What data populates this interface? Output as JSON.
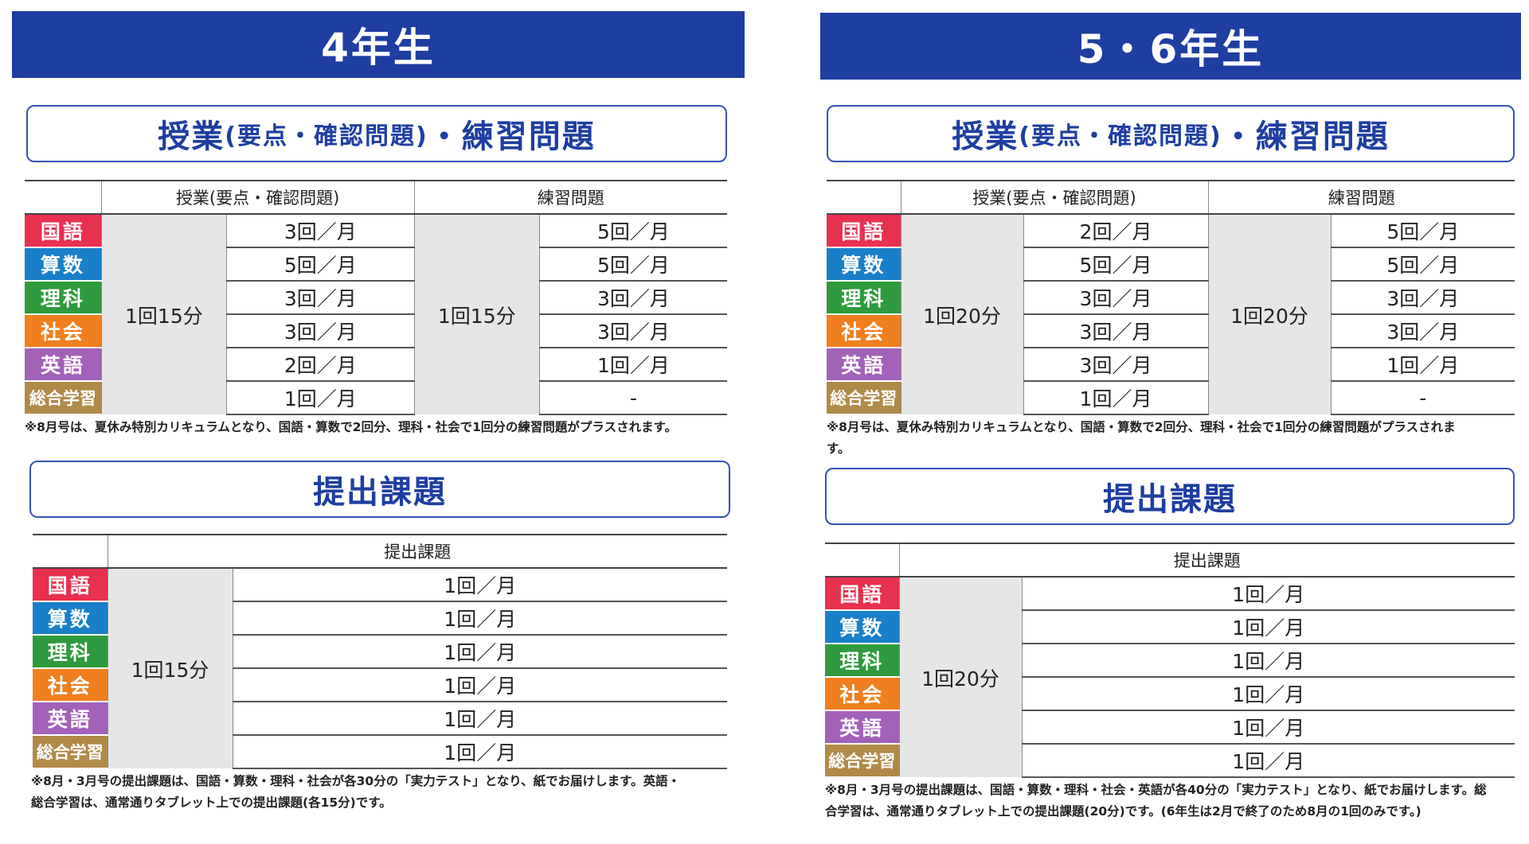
{
  "colors": {
    "banner": "#1e3ea1",
    "kokugo": "#e8304f",
    "sansu": "#1a7fc9",
    "rika": "#2f9a3d",
    "shakai": "#f07f1f",
    "eigo": "#a361b8",
    "sogo": "#b08a48"
  },
  "grade4": {
    "title": "4年生",
    "section1": {
      "title_main": "授業",
      "title_paren": "(要点・確認問題)",
      "title_rest": "・練習問題"
    },
    "table1": {
      "header_a": "授業(要点・確認問題)",
      "header_b": "練習問題",
      "duration_a": "1回15分",
      "duration_b": "1回15分",
      "rows": [
        {
          "subject": "国語",
          "color": "#e8304f",
          "a": "3回／月",
          "b": "5回／月"
        },
        {
          "subject": "算数",
          "color": "#1a7fc9",
          "a": "5回／月",
          "b": "5回／月"
        },
        {
          "subject": "理科",
          "color": "#2f9a3d",
          "a": "3回／月",
          "b": "3回／月"
        },
        {
          "subject": "社会",
          "color": "#f07f1f",
          "a": "3回／月",
          "b": "3回／月"
        },
        {
          "subject": "英語",
          "color": "#a361b8",
          "a": "2回／月",
          "b": "1回／月"
        },
        {
          "subject": "総合学習",
          "color": "#b08a48",
          "a": "1回／月",
          "b": "-"
        }
      ]
    },
    "note1": "※8月号は、夏休み特別カリキュラムとなり、国語・算数で2回分、理科・社会で1回分の練習問題がプラスされます。",
    "section2": {
      "title": "提出課題"
    },
    "table2": {
      "header": "提出課題",
      "duration": "1回15分",
      "rows": [
        {
          "subject": "国語",
          "color": "#e8304f",
          "v": "1回／月"
        },
        {
          "subject": "算数",
          "color": "#1a7fc9",
          "v": "1回／月"
        },
        {
          "subject": "理科",
          "color": "#2f9a3d",
          "v": "1回／月"
        },
        {
          "subject": "社会",
          "color": "#f07f1f",
          "v": "1回／月"
        },
        {
          "subject": "英語",
          "color": "#a361b8",
          "v": "1回／月"
        },
        {
          "subject": "総合学習",
          "color": "#b08a48",
          "v": "1回／月"
        }
      ]
    },
    "note2_line1": "※8月・3月号の提出課題は、国語・算数・理科・社会が各30分の「実力テスト」となり、紙でお届けします。英語・",
    "note2_line2": "総合学習は、通常通りタブレット上での提出課題(各15分)です。"
  },
  "grade56": {
    "title": "5・6年生",
    "section1": {
      "title_main": "授業",
      "title_paren": "(要点・確認問題)",
      "title_rest": "・練習問題"
    },
    "table1": {
      "header_a": "授業(要点・確認問題)",
      "header_b": "練習問題",
      "duration_a": "1回20分",
      "duration_b": "1回20分",
      "rows": [
        {
          "subject": "国語",
          "color": "#e8304f",
          "a": "2回／月",
          "b": "5回／月"
        },
        {
          "subject": "算数",
          "color": "#1a7fc9",
          "a": "5回／月",
          "b": "5回／月"
        },
        {
          "subject": "理科",
          "color": "#2f9a3d",
          "a": "3回／月",
          "b": "3回／月"
        },
        {
          "subject": "社会",
          "color": "#f07f1f",
          "a": "3回／月",
          "b": "3回／月"
        },
        {
          "subject": "英語",
          "color": "#a361b8",
          "a": "3回／月",
          "b": "1回／月"
        },
        {
          "subject": "総合学習",
          "color": "#b08a48",
          "a": "1回／月",
          "b": "-"
        }
      ]
    },
    "note1_line1": "※8月号は、夏休み特別カリキュラムとなり、国語・算数で2回分、理科・社会で1回分の練習問題がプラスされま",
    "note1_line2": "す。",
    "section2": {
      "title": "提出課題"
    },
    "table2": {
      "header": "提出課題",
      "duration": "1回20分",
      "rows": [
        {
          "subject": "国語",
          "color": "#e8304f",
          "v": "1回／月"
        },
        {
          "subject": "算数",
          "color": "#1a7fc9",
          "v": "1回／月"
        },
        {
          "subject": "理科",
          "color": "#2f9a3d",
          "v": "1回／月"
        },
        {
          "subject": "社会",
          "color": "#f07f1f",
          "v": "1回／月"
        },
        {
          "subject": "英語",
          "color": "#a361b8",
          "v": "1回／月"
        },
        {
          "subject": "総合学習",
          "color": "#b08a48",
          "v": "1回／月"
        }
      ]
    },
    "note2_line1": "※8月・3月号の提出課題は、国語・算数・理科・社会・英語が各40分の「実力テスト」となり、紙でお届けします。総",
    "note2_line2": "合学習は、通常通りタブレット上での提出課題(20分)です。(6年生は2月で終了のため8月の1回のみです。)"
  }
}
